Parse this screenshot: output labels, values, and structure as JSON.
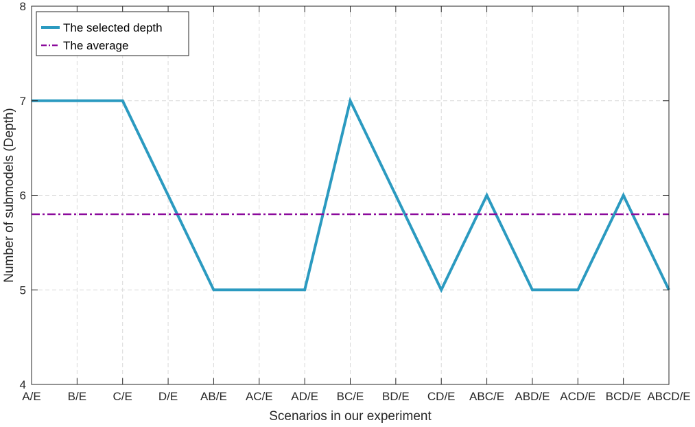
{
  "chart_data": {
    "type": "line",
    "xlabel": "Scenarios in our experiment",
    "ylabel": "Number of submodels (Depth)",
    "categories": [
      "A/E",
      "B/E",
      "C/E",
      "D/E",
      "AB/E",
      "AC/E",
      "AD/E",
      "BC/E",
      "BD/E",
      "CD/E",
      "ABC/E",
      "ABD/E",
      "ACD/E",
      "BCD/E",
      "ABCD/E"
    ],
    "ylim": [
      4,
      8
    ],
    "yticks": [
      "4",
      "5",
      "6",
      "7",
      "8"
    ],
    "grid": true,
    "legend_position": "top-left",
    "series": [
      {
        "name": "The selected depth",
        "values": [
          7,
          7,
          7,
          6,
          5,
          5,
          5,
          7,
          6,
          5,
          6,
          5,
          5,
          6,
          5
        ],
        "color": "#2b9ac0",
        "style": "solid"
      },
      {
        "name": "The average",
        "values": [
          5.8,
          5.8,
          5.8,
          5.8,
          5.8,
          5.8,
          5.8,
          5.8,
          5.8,
          5.8,
          5.8,
          5.8,
          5.8,
          5.8,
          5.8
        ],
        "color": "#8b0a9c",
        "style": "dash-dot"
      }
    ]
  }
}
